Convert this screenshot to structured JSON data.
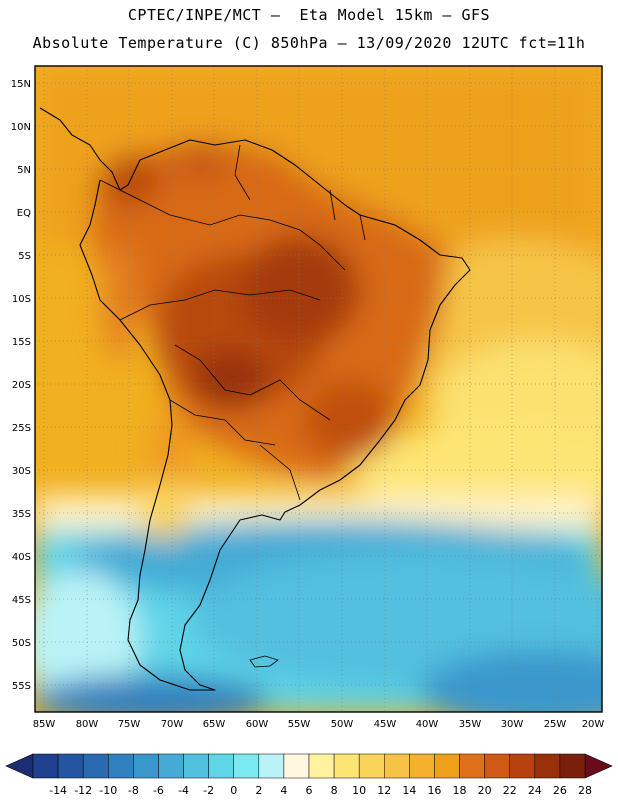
{
  "header": {
    "title_line1": "CPTEC/INPE/MCT –  Eta Model 15km – GFS",
    "title_line2": "Absolute Temperature (C) 850hPa – 13/09/2020 12UTC fct=11h"
  },
  "map": {
    "lat_labels": [
      "15N",
      "10N",
      "5N",
      "EQ",
      "5S",
      "10S",
      "15S",
      "20S",
      "25S",
      "30S",
      "35S",
      "40S",
      "45S",
      "50S",
      "55S"
    ],
    "lon_labels": [
      "85W",
      "80W",
      "75W",
      "70W",
      "65W",
      "60W",
      "55W",
      "50W",
      "45W",
      "40W",
      "35W",
      "30W",
      "25W",
      "20W"
    ]
  },
  "legend": {
    "labels": [
      "-14",
      "-12",
      "-10",
      "-8",
      "-6",
      "-4",
      "-2",
      "0",
      "2",
      "4",
      "6",
      "8",
      "10",
      "12",
      "14",
      "16",
      "18",
      "20",
      "22",
      "24",
      "26",
      "28"
    ],
    "colors": [
      "#1f3f8f",
      "#2455a0",
      "#2a6ab0",
      "#3180bf",
      "#3a97cc",
      "#45abd6",
      "#52c0df",
      "#5fd5e8",
      "#7ae9f0",
      "#b9f3f7",
      "#fff7e0",
      "#fff2a0",
      "#fde574",
      "#fad45a",
      "#f7c347",
      "#f3b12e",
      "#efa01a",
      "#e0701a",
      "#d05a15",
      "#b8420f",
      "#98300c",
      "#7a200a"
    ],
    "under_color": "#1b2e72",
    "over_color": "#6a0a1a"
  }
}
